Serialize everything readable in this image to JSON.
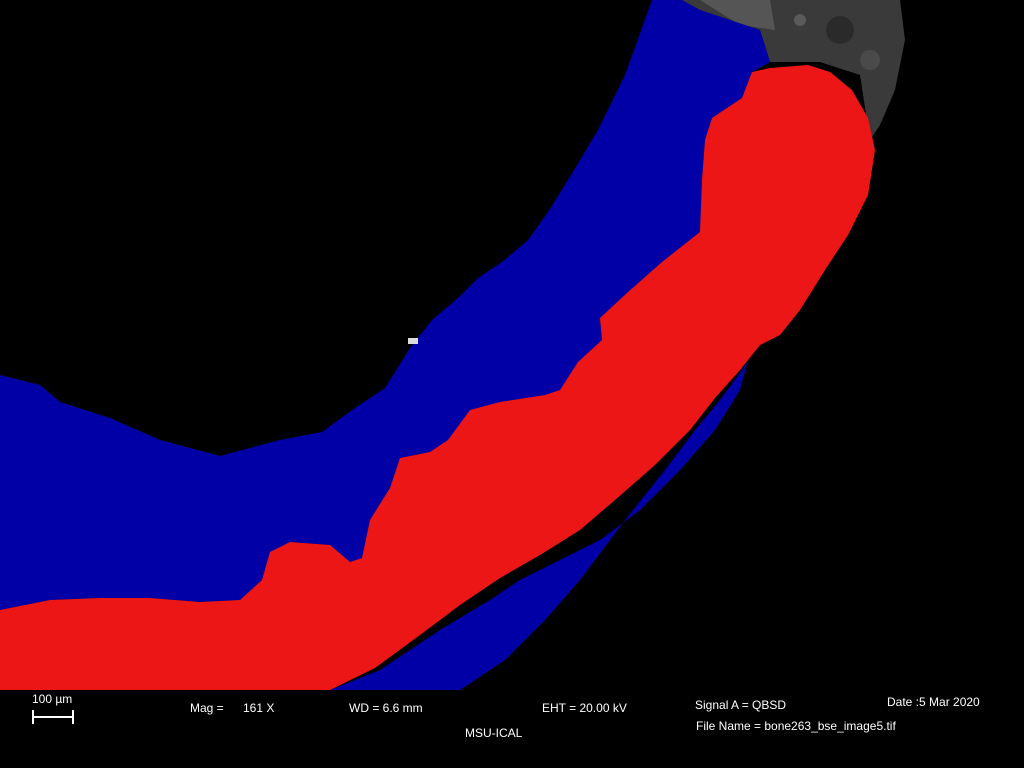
{
  "image": {
    "description_icon": "sem-micrograph-segmentation",
    "colors": {
      "background": "#000000",
      "region_outer": "#0000a6",
      "region_inner": "#ed1616",
      "tissue_gray": "#3a3a3a"
    }
  },
  "databar": {
    "scalebar_label": "100 µm",
    "mag_label": "Mag =",
    "mag_value": "161 X",
    "wd": "WD =  6.6 mm",
    "eht": "EHT = 20.00 kV",
    "signal": "Signal A = QBSD",
    "date": "Date :5 Mar 2020",
    "file_name": "File Name = bone263_bse_image5.tif",
    "organization": "MSU-ICAL"
  }
}
